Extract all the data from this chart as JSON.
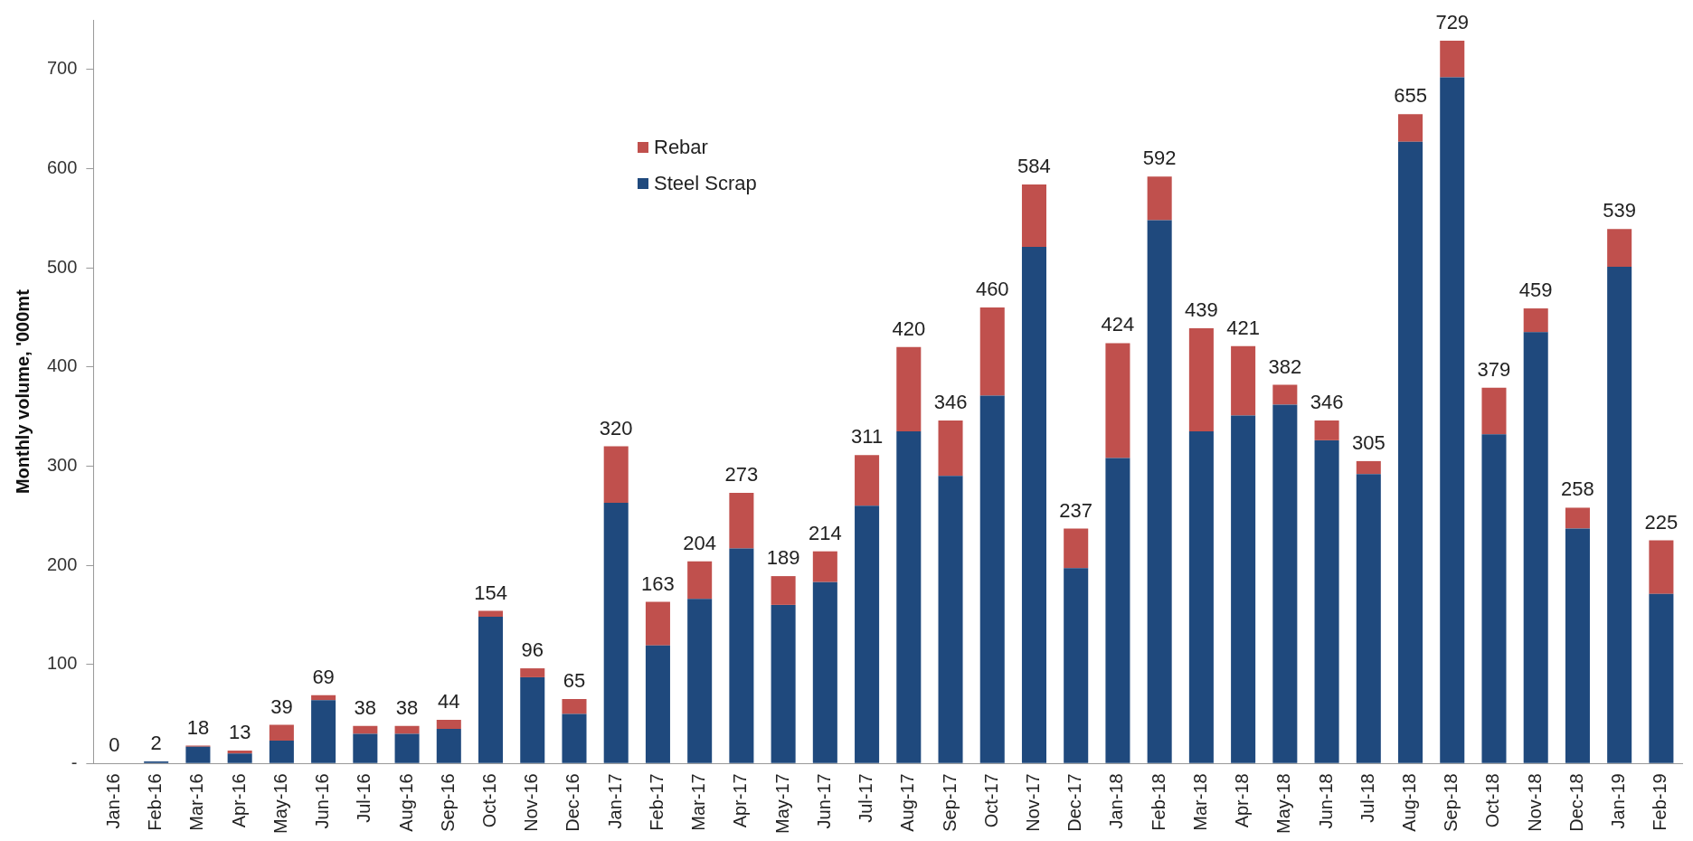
{
  "chart_data": {
    "type": "bar",
    "stacked": true,
    "ylabel": "Monthly volume, '000mt",
    "categories": [
      "Jan-16",
      "Feb-16",
      "Mar-16",
      "Apr-16",
      "May-16",
      "Jun-16",
      "Jul-16",
      "Aug-16",
      "Sep-16",
      "Oct-16",
      "Nov-16",
      "Dec-16",
      "Jan-17",
      "Feb-17",
      "Mar-17",
      "Apr-17",
      "May-17",
      "Jun-17",
      "Jul-17",
      "Aug-17",
      "Sep-17",
      "Oct-17",
      "Nov-17",
      "Dec-17",
      "Jan-18",
      "Feb-18",
      "Mar-18",
      "Apr-18",
      "May-18",
      "Jun-18",
      "Jul-18",
      "Aug-18",
      "Sep-18",
      "Oct-18",
      "Nov-18",
      "Dec-18",
      "Jan-19",
      "Feb-19"
    ],
    "series": [
      {
        "name": "Steel Scrap",
        "color": "#1f497d",
        "values": [
          0,
          2,
          17,
          10,
          23,
          64,
          30,
          30,
          35,
          148,
          87,
          50,
          263,
          119,
          166,
          217,
          160,
          183,
          260,
          335,
          290,
          371,
          521,
          197,
          308,
          548,
          335,
          351,
          362,
          326,
          292,
          627,
          692,
          332,
          435,
          237,
          501,
          171
        ]
      },
      {
        "name": "Rebar",
        "color": "#c0504d",
        "values": [
          0,
          0,
          1,
          3,
          16,
          5,
          8,
          8,
          9,
          6,
          9,
          15,
          57,
          44,
          38,
          56,
          29,
          31,
          51,
          85,
          56,
          89,
          63,
          40,
          116,
          44,
          104,
          70,
          20,
          20,
          13,
          28,
          37,
          47,
          24,
          21,
          38,
          54
        ]
      }
    ],
    "totals": [
      "0",
      "2",
      "18",
      "13",
      "39",
      "69",
      "38",
      "38",
      "44",
      "154",
      "96",
      "65",
      "320",
      "163",
      "204",
      "273",
      "189",
      "214",
      "311",
      "420",
      "346",
      "460",
      "584",
      "237",
      "424",
      "592",
      "439",
      "421",
      "382",
      "346",
      "305",
      "655",
      "729",
      "379",
      "459",
      "258",
      "539",
      "225"
    ],
    "ylim": [
      0,
      750
    ],
    "yticks": [
      {
        "value": 0,
        "label": "-"
      },
      100,
      200,
      300,
      400,
      500,
      600,
      700
    ],
    "grid": false,
    "legend": "top left"
  }
}
